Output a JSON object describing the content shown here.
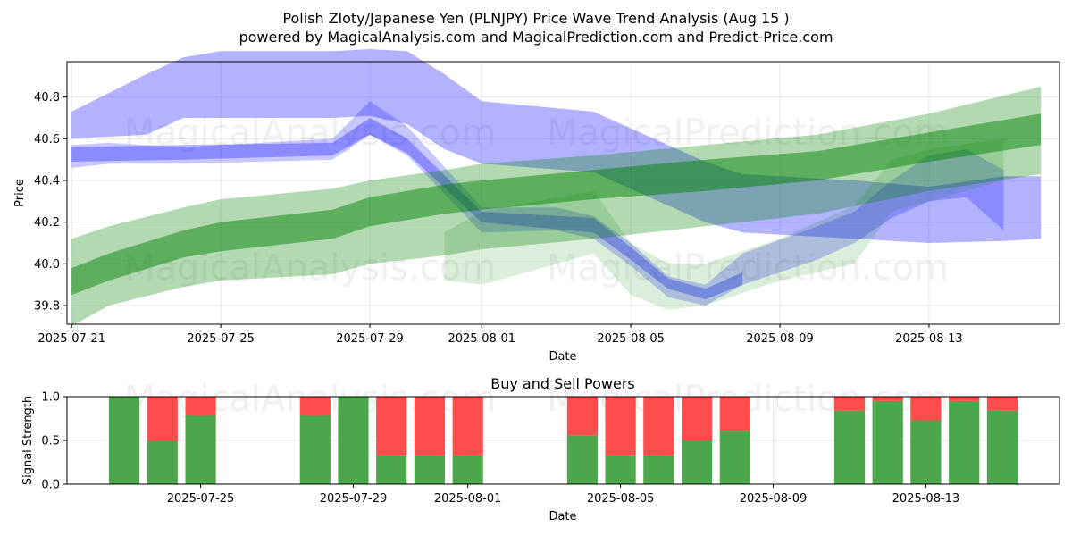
{
  "title": "Polish Zloty/Japanese Yen (PLNJPY) Price Wave Trend Analysis (Aug 15 )",
  "subtitle": "powered by MagicalAnalysis.com and MagicalPrediction.com and Predict-Price.com",
  "watermarks": [
    "MagicalAnalysis.com",
    "MagicalPrediction.com"
  ],
  "colors": {
    "blue": "#0000ff",
    "green": "#008000",
    "buy": "#4ca64c",
    "sell": "#ff4c4c",
    "grid": "#b0b0b0"
  },
  "chart_data": [
    {
      "type": "area",
      "name": "price-wave",
      "xlabel": "Date",
      "ylabel": "Price",
      "x_range": [
        "2025-07-20T21:00",
        "2025-08-16T12:00"
      ],
      "ylim": [
        39.71,
        40.97
      ],
      "y_ticks": [
        39.8,
        40.0,
        40.2,
        40.4,
        40.6,
        40.8
      ],
      "x_ticks": [
        "2025-07-21",
        "2025-07-25",
        "2025-07-29",
        "2025-08-01",
        "2025-08-05",
        "2025-08-09",
        "2025-08-13"
      ],
      "grid": true,
      "series": [
        {
          "name": "blue-wave-outer",
          "color": "blue",
          "opacity": 0.3,
          "x": [
            "2025-07-21",
            "2025-07-23",
            "2025-07-24",
            "2025-07-25",
            "2025-07-28",
            "2025-07-29",
            "2025-07-30",
            "2025-07-31",
            "2025-08-01",
            "2025-08-04",
            "2025-08-07",
            "2025-08-08",
            "2025-08-11",
            "2025-08-13",
            "2025-08-15",
            "2025-08-16"
          ],
          "upper": [
            40.73,
            40.91,
            40.99,
            41.02,
            41.02,
            41.03,
            41.02,
            40.91,
            40.78,
            40.73,
            40.49,
            40.43,
            40.4,
            40.37,
            40.42,
            40.42
          ],
          "lower": [
            40.6,
            40.62,
            40.7,
            40.7,
            40.7,
            40.71,
            40.67,
            40.55,
            40.48,
            40.44,
            40.2,
            40.15,
            40.12,
            40.1,
            40.11,
            40.12
          ]
        },
        {
          "name": "blue-wave-inner",
          "color": "blue",
          "opacity": 0.22,
          "x": [
            "2025-07-21",
            "2025-07-22",
            "2025-07-24",
            "2025-07-28",
            "2025-07-29",
            "2025-07-30",
            "2025-08-01",
            "2025-08-03",
            "2025-08-04",
            "2025-08-05",
            "2025-08-06",
            "2025-08-07",
            "2025-08-08",
            "2025-08-10",
            "2025-08-11",
            "2025-08-12",
            "2025-08-13",
            "2025-08-14",
            "2025-08-15"
          ],
          "upper": [
            40.57,
            40.58,
            40.56,
            40.6,
            40.78,
            40.66,
            40.27,
            40.27,
            40.23,
            40.1,
            39.94,
            39.9,
            40.05,
            40.18,
            40.25,
            40.4,
            40.52,
            40.55,
            40.45
          ],
          "lower": [
            40.46,
            40.48,
            40.48,
            40.5,
            40.62,
            40.52,
            40.15,
            40.16,
            40.12,
            39.99,
            39.84,
            39.8,
            39.9,
            40.02,
            40.1,
            40.22,
            40.3,
            40.32,
            40.16
          ]
        },
        {
          "name": "blue-wave-core",
          "color": "blue",
          "opacity": 0.3,
          "x": [
            "2025-07-21",
            "2025-07-24",
            "2025-07-28",
            "2025-07-29",
            "2025-07-30",
            "2025-08-01",
            "2025-08-04",
            "2025-08-05",
            "2025-08-06",
            "2025-08-07",
            "2025-08-08"
          ],
          "upper": [
            40.56,
            40.57,
            40.58,
            40.7,
            40.6,
            40.25,
            40.22,
            40.08,
            39.93,
            39.88,
            39.96
          ],
          "lower": [
            40.49,
            40.5,
            40.52,
            40.62,
            40.53,
            40.2,
            40.15,
            40.02,
            39.88,
            39.83,
            39.9
          ]
        },
        {
          "name": "green-wave-outer",
          "color": "green",
          "opacity": 0.3,
          "x": [
            "2025-07-21",
            "2025-07-22",
            "2025-07-24",
            "2025-07-25",
            "2025-07-28",
            "2025-07-29",
            "2025-07-31",
            "2025-08-01",
            "2025-08-04",
            "2025-08-07",
            "2025-08-10",
            "2025-08-13",
            "2025-08-16"
          ],
          "upper": [
            40.12,
            40.18,
            40.27,
            40.31,
            40.36,
            40.4,
            40.45,
            40.48,
            40.52,
            40.57,
            40.62,
            40.72,
            40.85
          ],
          "lower": [
            39.7,
            39.8,
            39.89,
            39.92,
            39.95,
            40.0,
            40.04,
            40.07,
            40.12,
            40.18,
            40.24,
            40.35,
            40.43
          ]
        },
        {
          "name": "green-wave-core",
          "color": "green",
          "opacity": 0.48,
          "x": [
            "2025-07-21",
            "2025-07-22",
            "2025-07-24",
            "2025-07-25",
            "2025-07-28",
            "2025-07-29",
            "2025-07-31",
            "2025-08-01",
            "2025-08-04",
            "2025-08-07",
            "2025-08-10",
            "2025-08-13",
            "2025-08-16"
          ],
          "upper": [
            39.98,
            40.05,
            40.16,
            40.2,
            40.26,
            40.32,
            40.38,
            40.4,
            40.45,
            40.5,
            40.54,
            40.63,
            40.72
          ],
          "lower": [
            39.85,
            39.92,
            40.03,
            40.06,
            40.12,
            40.18,
            40.24,
            40.26,
            40.31,
            40.35,
            40.4,
            40.49,
            40.57
          ]
        },
        {
          "name": "green-wave-thin",
          "color": "green",
          "opacity": 0.14,
          "x": [
            "2025-07-31",
            "2025-08-01",
            "2025-08-04",
            "2025-08-05",
            "2025-08-06",
            "2025-08-07",
            "2025-08-09",
            "2025-08-11",
            "2025-08-12",
            "2025-08-13",
            "2025-08-15"
          ],
          "upper": [
            40.15,
            40.25,
            40.35,
            40.1,
            40.0,
            40.0,
            40.12,
            40.28,
            40.5,
            40.55,
            40.6
          ],
          "lower": [
            39.92,
            39.9,
            40.05,
            39.85,
            39.78,
            39.8,
            39.92,
            40.0,
            40.25,
            40.3,
            40.4
          ]
        }
      ]
    },
    {
      "type": "bar",
      "name": "buy-sell-powers",
      "title": "Buy and Sell Powers",
      "xlabel": "Date",
      "ylabel": "Signal Strength",
      "ylim": [
        0,
        1
      ],
      "y_ticks": [
        0.0,
        0.5,
        1.0
      ],
      "x_ticks": [
        "2025-07-25",
        "2025-07-29",
        "2025-08-01",
        "2025-08-05",
        "2025-08-09",
        "2025-08-13"
      ],
      "x_range": [
        "2025-07-21T12:00",
        "2025-08-16T12:00"
      ],
      "categories": [
        "2025-07-23",
        "2025-07-24",
        "2025-07-25",
        "2025-07-28",
        "2025-07-29",
        "2025-07-30",
        "2025-07-31",
        "2025-08-01",
        "2025-08-04",
        "2025-08-05",
        "2025-08-06",
        "2025-08-07",
        "2025-08-08",
        "2025-08-11",
        "2025-08-12",
        "2025-08-13",
        "2025-08-14",
        "2025-08-15"
      ],
      "series": [
        {
          "name": "Buy",
          "color": "buy",
          "values": [
            1.0,
            0.5,
            0.79,
            0.79,
            1.0,
            0.33,
            0.33,
            0.33,
            0.56,
            0.33,
            0.33,
            0.5,
            0.61,
            0.84,
            0.95,
            0.73,
            0.95,
            0.84
          ]
        },
        {
          "name": "Sell",
          "color": "sell",
          "values": [
            0.0,
            0.5,
            0.21,
            0.21,
            0.0,
            0.67,
            0.67,
            0.67,
            0.44,
            0.67,
            0.67,
            0.5,
            0.39,
            0.16,
            0.05,
            0.27,
            0.05,
            0.16
          ]
        }
      ]
    }
  ]
}
